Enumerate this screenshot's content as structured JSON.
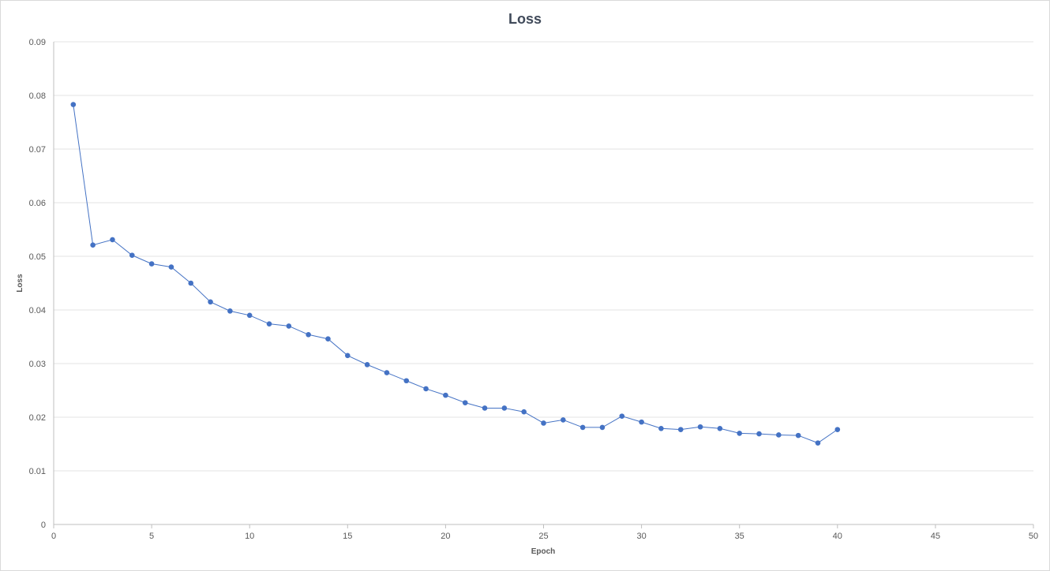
{
  "chart_data": {
    "type": "line",
    "title": "Loss",
    "xlabel": "Epoch",
    "ylabel": "Loss",
    "xlim": [
      0,
      50
    ],
    "ylim": [
      0,
      0.09
    ],
    "x_ticks": [
      0,
      5,
      10,
      15,
      20,
      25,
      30,
      35,
      40,
      45,
      50
    ],
    "y_ticks": [
      0,
      0.01,
      0.02,
      0.03,
      0.04,
      0.05,
      0.06,
      0.07,
      0.08,
      0.09
    ],
    "grid": true,
    "legend": "none",
    "colors": {
      "series": "#4472c4"
    },
    "series": [
      {
        "x": [
          1,
          2,
          3,
          4,
          5,
          6,
          7,
          8,
          9,
          10,
          11,
          12,
          13,
          14,
          15,
          16,
          17,
          18,
          19,
          20,
          21,
          22,
          23,
          24,
          25,
          26,
          27,
          28,
          29,
          30,
          31,
          32,
          33,
          34,
          35,
          36,
          37,
          38,
          39,
          40
        ],
        "y": [
          0.0783,
          0.0521,
          0.0531,
          0.0502,
          0.0486,
          0.048,
          0.045,
          0.0415,
          0.0398,
          0.039,
          0.0374,
          0.037,
          0.0354,
          0.0346,
          0.0315,
          0.0298,
          0.0283,
          0.0268,
          0.0253,
          0.0241,
          0.0227,
          0.0217,
          0.0217,
          0.021,
          0.0189,
          0.0195,
          0.0181,
          0.0181,
          0.0202,
          0.0191,
          0.0179,
          0.0177,
          0.0182,
          0.0179,
          0.017,
          0.0169,
          0.0167,
          0.0166,
          0.0152,
          0.0177
        ]
      }
    ]
  }
}
